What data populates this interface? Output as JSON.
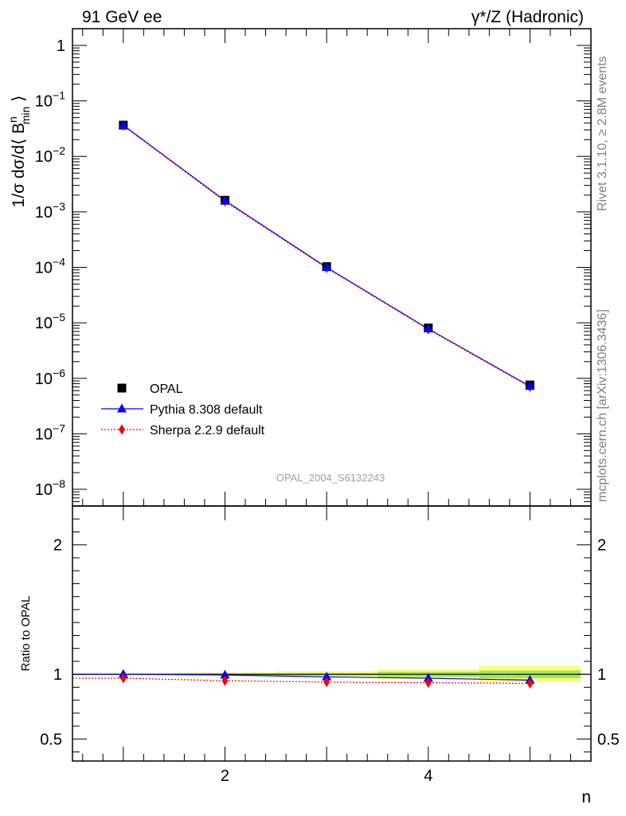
{
  "header": {
    "left": "91 GeV ee",
    "right_sup": "γ*/Z",
    "right_rest": " (Hadronic)"
  },
  "side_labels": {
    "rivet": "Rivet 3.1.10, ≥ 2.8M events",
    "mcplots": "mcplots.cern.ch [arXiv:1306.3436]"
  },
  "watermark": "OPAL_2004_S6132243",
  "colors": {
    "opal": "#000000",
    "pythia": "#0000ff",
    "sherpa": "#ff0000",
    "band_stat": "#33cc33",
    "band_syst": "#ffff66"
  },
  "chart_data": [
    {
      "type": "scatter",
      "panel": "main",
      "ylabel_prefix": "1/σ dσ/d⟨ B",
      "ylabel_sup": "n",
      "ylabel_sub": "min",
      "ylabel_suffix": " ⟩",
      "yscale": "log",
      "ylim": [
        5e-09,
        2.0
      ],
      "xlim": [
        0.5,
        5.6
      ],
      "x": [
        1,
        2,
        3,
        4,
        5
      ],
      "yticks": [
        {
          "value": 1,
          "label": "1"
        },
        {
          "value": 0.1,
          "base": "10",
          "exp": "−1"
        },
        {
          "value": 0.01,
          "base": "10",
          "exp": "−2"
        },
        {
          "value": 0.001,
          "base": "10",
          "exp": "−3"
        },
        {
          "value": 0.0001,
          "base": "10",
          "exp": "−4"
        },
        {
          "value": 1e-05,
          "base": "10",
          "exp": "−5"
        },
        {
          "value": 1e-06,
          "base": "10",
          "exp": "−6"
        },
        {
          "value": 1e-07,
          "base": "10",
          "exp": "−7"
        },
        {
          "value": 1e-08,
          "base": "10",
          "exp": "−8"
        }
      ],
      "legend_position": "bottom-left",
      "series": [
        {
          "name": "OPAL",
          "marker": "square",
          "values": [
            0.0365,
            0.00162,
            0.000103,
            8.1e-06,
            7.6e-07
          ]
        },
        {
          "name": "Pythia 8.308 default",
          "marker": "triangle",
          "line": "solid",
          "values": [
            0.0364,
            0.0016,
            0.0001,
            7.8e-06,
            7.2e-07
          ]
        },
        {
          "name": "Sherpa 2.2.9 default",
          "marker": "diamond",
          "line": "dotted",
          "values": [
            0.0355,
            0.00154,
            9.7e-05,
            7.6e-06,
            7e-07
          ]
        }
      ]
    },
    {
      "type": "line",
      "panel": "ratio",
      "ylabel": "Ratio to OPAL",
      "xlabel": "n",
      "ylim": [
        0.33,
        2.3
      ],
      "yticks": [
        {
          "value": 0.5,
          "label": "0.5"
        },
        {
          "value": 1,
          "label": "1"
        },
        {
          "value": 2,
          "label": "2"
        }
      ],
      "xticks": [
        {
          "value": 2,
          "label": "2"
        },
        {
          "value": 4,
          "label": "4"
        }
      ],
      "x": [
        1,
        2,
        3,
        4,
        5
      ],
      "bands": [
        {
          "x_low": 0.5,
          "x_high": 1.5,
          "stat": [
            0.995,
            1.005
          ],
          "syst": [
            0.99,
            1.01
          ]
        },
        {
          "x_low": 1.5,
          "x_high": 2.5,
          "stat": [
            0.993,
            1.007
          ],
          "syst": [
            0.985,
            1.015
          ]
        },
        {
          "x_low": 2.5,
          "x_high": 3.5,
          "stat": [
            0.99,
            1.01
          ],
          "syst": [
            0.975,
            1.025
          ]
        },
        {
          "x_low": 3.5,
          "x_high": 4.5,
          "stat": [
            0.98,
            1.02
          ],
          "syst": [
            0.96,
            1.04
          ]
        },
        {
          "x_low": 4.5,
          "x_high": 5.5,
          "stat": [
            0.97,
            1.03
          ],
          "syst": [
            0.94,
            1.07
          ]
        }
      ],
      "series": [
        {
          "name": "Pythia 8.308 default",
          "values": [
            1.0,
            0.995,
            0.98,
            0.97,
            0.955
          ]
        },
        {
          "name": "Sherpa 2.2.9 default",
          "values": [
            0.97,
            0.95,
            0.94,
            0.935,
            0.93
          ]
        }
      ]
    }
  ]
}
